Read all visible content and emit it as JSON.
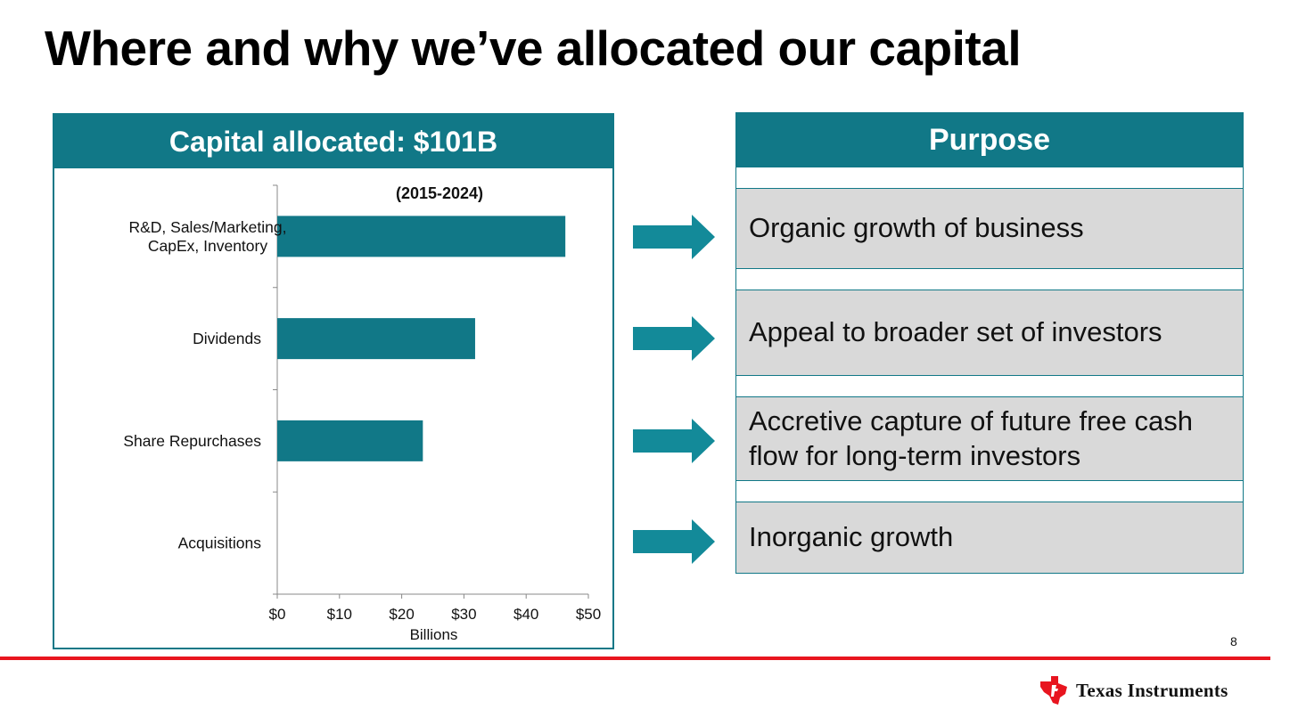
{
  "slide": {
    "title": "Where and why we’ve allocated our capital",
    "page_number": "8",
    "company": "Texas Instruments"
  },
  "left_panel": {
    "header": "Capital allocated: $101B"
  },
  "right_panel": {
    "header": "Purpose",
    "items": [
      "Organic growth of business",
      "Appeal to broader set of investors",
      "Accretive capture of future free cash flow for long-term investors",
      "Inorganic growth"
    ]
  },
  "colors": {
    "teal": "#117887",
    "arrow": "#138a99",
    "red_rule": "#e8151f",
    "item_bg": "#d9d9d9"
  },
  "chart_data": {
    "type": "bar",
    "orientation": "horizontal",
    "annotation": "(2015-2024)",
    "categories": [
      "R&D, Sales/Marketing, CapEx, Inventory",
      "Dividends",
      "Share Repurchases",
      "Acquisitions"
    ],
    "category_lines": [
      [
        "R&D, Sales/Marketing,",
        "CapEx, Inventory"
      ],
      [
        "Dividends"
      ],
      [
        "Share Repurchases"
      ],
      [
        "Acquisitions"
      ]
    ],
    "values": [
      46.3,
      31.8,
      23.4,
      0
    ],
    "xlabel": "Billions",
    "xlim": [
      0,
      50
    ],
    "xticks": [
      "$0",
      "$10",
      "$20",
      "$30",
      "$40",
      "$50"
    ],
    "grid": false,
    "bar_color": "#117887"
  }
}
